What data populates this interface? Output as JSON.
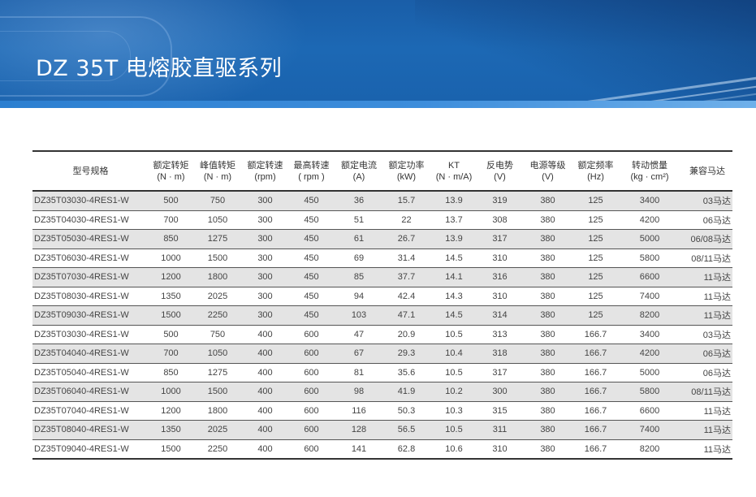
{
  "title": "DZ 35T 电熔胶直驱系列",
  "table": {
    "headers": [
      [
        "型号规格",
        ""
      ],
      [
        "额定转矩",
        "(N · m)"
      ],
      [
        "峰值转矩",
        "(N · m)"
      ],
      [
        "额定转速",
        "(rpm)"
      ],
      [
        "最高转速",
        "( rpm )"
      ],
      [
        "额定电流",
        "(A)"
      ],
      [
        "额定功率",
        "(kW)"
      ],
      [
        "KT",
        "(N · m/A)"
      ],
      [
        "反电势",
        "(V)"
      ],
      [
        "电源等级",
        "(V)"
      ],
      [
        "额定频率",
        "(Hz)"
      ],
      [
        "转动惯量",
        "(kg · cm²)"
      ],
      [
        "兼容马达",
        ""
      ]
    ],
    "rows": [
      [
        "DZ35T03030-4RES1-W",
        "500",
        "750",
        "300",
        "450",
        "36",
        "15.7",
        "13.9",
        "319",
        "380",
        "125",
        "3400",
        "03马达"
      ],
      [
        "DZ35T04030-4RES1-W",
        "700",
        "1050",
        "300",
        "450",
        "51",
        "22",
        "13.7",
        "308",
        "380",
        "125",
        "4200",
        "06马达"
      ],
      [
        "DZ35T05030-4RES1-W",
        "850",
        "1275",
        "300",
        "450",
        "61",
        "26.7",
        "13.9",
        "317",
        "380",
        "125",
        "5000",
        "06/08马达"
      ],
      [
        "DZ35T06030-4RES1-W",
        "1000",
        "1500",
        "300",
        "450",
        "69",
        "31.4",
        "14.5",
        "310",
        "380",
        "125",
        "5800",
        "08/11马达"
      ],
      [
        "DZ35T07030-4RES1-W",
        "1200",
        "1800",
        "300",
        "450",
        "85",
        "37.7",
        "14.1",
        "316",
        "380",
        "125",
        "6600",
        "11马达"
      ],
      [
        "DZ35T08030-4RES1-W",
        "1350",
        "2025",
        "300",
        "450",
        "94",
        "42.4",
        "14.3",
        "310",
        "380",
        "125",
        "7400",
        "11马达"
      ],
      [
        "DZ35T09030-4RES1-W",
        "1500",
        "2250",
        "300",
        "450",
        "103",
        "47.1",
        "14.5",
        "314",
        "380",
        "125",
        "8200",
        "11马达"
      ],
      [
        "DZ35T03030-4RES1-W",
        "500",
        "750",
        "400",
        "600",
        "47",
        "20.9",
        "10.5",
        "313",
        "380",
        "166.7",
        "3400",
        "03马达"
      ],
      [
        "DZ35T04040-4RES1-W",
        "700",
        "1050",
        "400",
        "600",
        "67",
        "29.3",
        "10.4",
        "318",
        "380",
        "166.7",
        "4200",
        "06马达"
      ],
      [
        "DZ35T05040-4RES1-W",
        "850",
        "1275",
        "400",
        "600",
        "81",
        "35.6",
        "10.5",
        "317",
        "380",
        "166.7",
        "5000",
        "06马达"
      ],
      [
        "DZ35T06040-4RES1-W",
        "1000",
        "1500",
        "400",
        "600",
        "98",
        "41.9",
        "10.2",
        "300",
        "380",
        "166.7",
        "5800",
        "08/11马达"
      ],
      [
        "DZ35T07040-4RES1-W",
        "1200",
        "1800",
        "400",
        "600",
        "116",
        "50.3",
        "10.3",
        "315",
        "380",
        "166.7",
        "6600",
        "11马达"
      ],
      [
        "DZ35T08040-4RES1-W",
        "1350",
        "2025",
        "400",
        "600",
        "128",
        "56.5",
        "10.5",
        "311",
        "380",
        "166.7",
        "7400",
        "11马达"
      ],
      [
        "DZ35T09040-4RES1-W",
        "1500",
        "2250",
        "400",
        "600",
        "141",
        "62.8",
        "10.6",
        "310",
        "380",
        "166.7",
        "8200",
        "11马达"
      ]
    ]
  },
  "colors": {
    "banner": "#1a5ea8",
    "shaded_row": "#e4e4e4",
    "rule": "#333333"
  }
}
